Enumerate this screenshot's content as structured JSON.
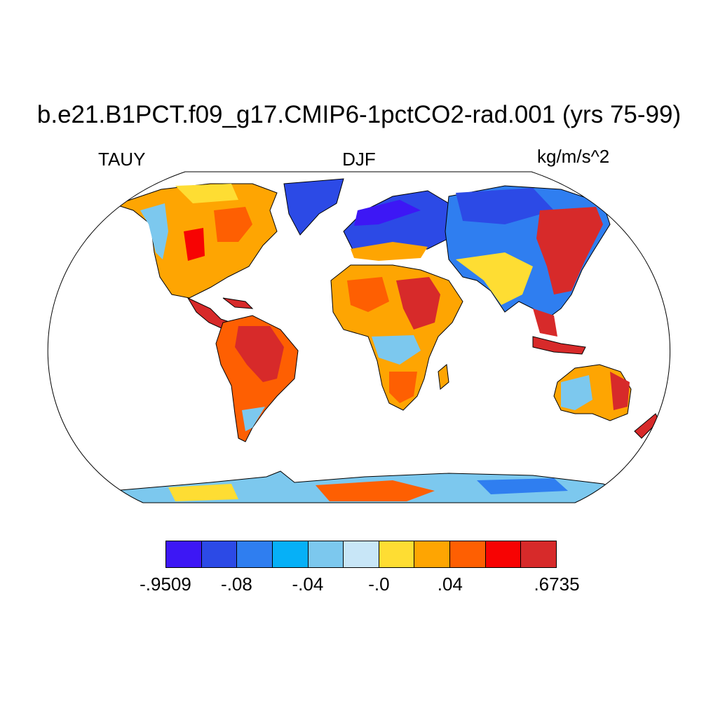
{
  "title": "b.e21.B1PCT.f09_g17.CMIP6-1pctCO2-rad.001 (yrs 75-99)",
  "variable_label": "TAUY",
  "season_label": "DJF",
  "units_label": "kg/m/s^2",
  "colorbar": {
    "colors": [
      "#3d17f5",
      "#2c4ae6",
      "#2f7ef0",
      "#06b0f7",
      "#7cc8ee",
      "#c8e6f7",
      "#fedd33",
      "#fea502",
      "#fe5f02",
      "#f70303",
      "#d72a2a"
    ],
    "labels": [
      {
        "text": "-.9509",
        "boundary": 0
      },
      {
        "text": "-.08",
        "boundary": 2
      },
      {
        "text": "-.04",
        "boundary": 4
      },
      {
        "text": "-.0",
        "boundary": 6
      },
      {
        "text": ".04",
        "boundary": 8
      },
      {
        "text": ".6735",
        "boundary": 11
      }
    ]
  }
}
